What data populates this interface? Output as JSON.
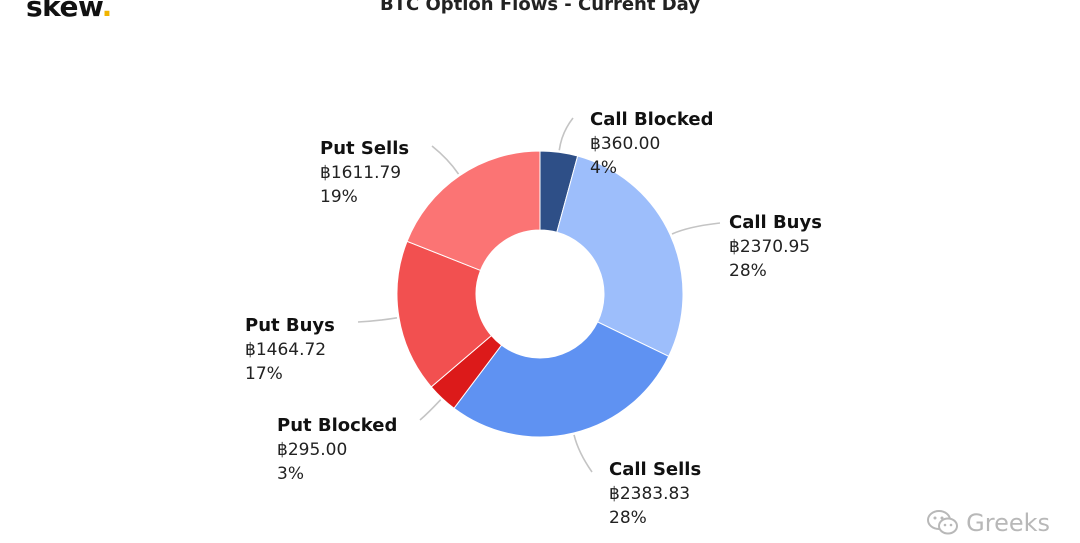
{
  "brand": {
    "name": "skew",
    "dot": "."
  },
  "watermark": {
    "text": "Greeks",
    "icon": "wechat-icon"
  },
  "chart_data": {
    "type": "pie",
    "variant": "donut",
    "title": "BTC Option Flows - Current Day",
    "currency_symbol": "฿",
    "slices": [
      {
        "key": "call-blocked",
        "name": "Call Blocked",
        "value": 360.0,
        "amount_label": "฿360.00",
        "percent_label": "4%",
        "color": "#2e4f87"
      },
      {
        "key": "call-buys",
        "name": "Call Buys",
        "value": 2370.95,
        "amount_label": "฿2370.95",
        "percent_label": "28%",
        "color": "#9dbefb"
      },
      {
        "key": "call-sells",
        "name": "Call Sells",
        "value": 2383.83,
        "amount_label": "฿2383.83",
        "percent_label": "28%",
        "color": "#5f92f2"
      },
      {
        "key": "put-blocked",
        "name": "Put Blocked",
        "value": 295.0,
        "amount_label": "฿295.00",
        "percent_label": "3%",
        "color": "#dc1a1a"
      },
      {
        "key": "put-buys",
        "name": "Put Buys",
        "value": 1464.72,
        "amount_label": "฿1464.72",
        "percent_label": "17%",
        "color": "#f25050"
      },
      {
        "key": "put-sells",
        "name": "Put Sells",
        "value": 1611.79,
        "amount_label": "฿1611.79",
        "percent_label": "19%",
        "color": "#fb7474"
      }
    ],
    "legend": "none"
  }
}
